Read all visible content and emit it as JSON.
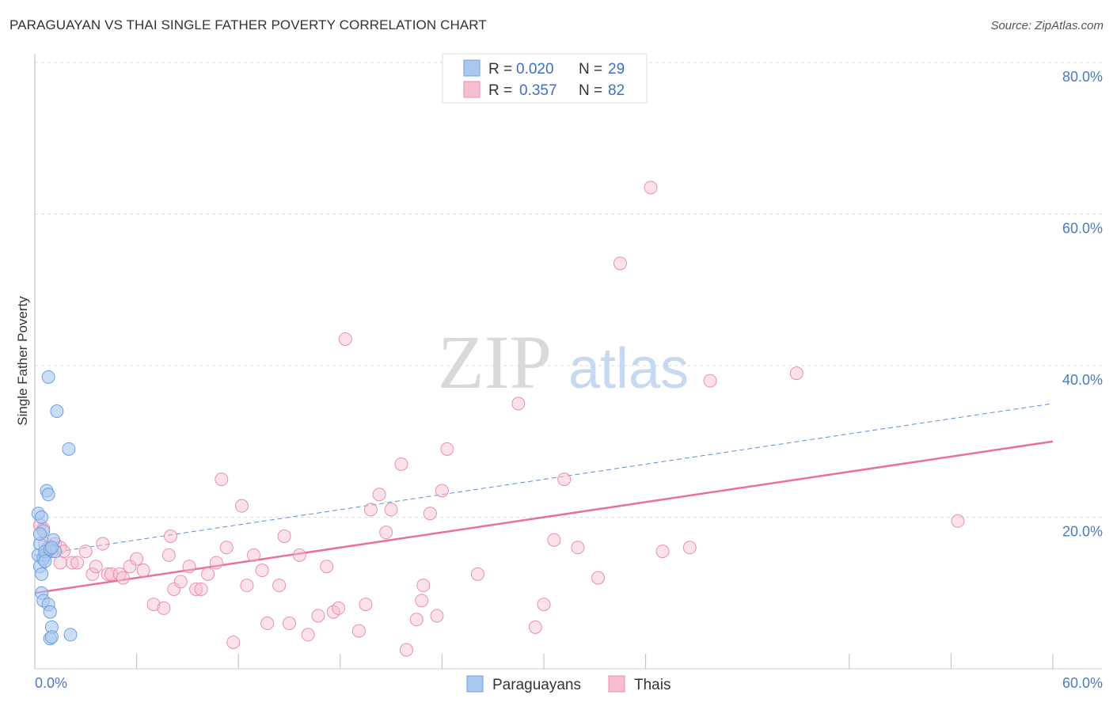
{
  "title": "PARAGUAYAN VS THAI SINGLE FATHER POVERTY CORRELATION CHART",
  "source": "Source: ZipAtlas.com",
  "watermark": {
    "zip": "ZIP",
    "atlas": "atlas"
  },
  "colors": {
    "blue_fill": "#a9c8f0",
    "blue_stroke": "#6f9fe0",
    "blue_line": "#5a8fd6",
    "pink_fill": "#f6bcd0",
    "pink_stroke": "#ea8fae",
    "pink_line": "#e8709a",
    "grid": "#dddddd",
    "axis_label": "#4a7bbf"
  },
  "legend": {
    "rows": [
      {
        "r_label": "R =",
        "r_value": "0.020",
        "n_label": "N =",
        "n_value": "29"
      },
      {
        "r_label": "R =",
        "r_value": "0.357",
        "n_label": "N =",
        "n_value": "82"
      }
    ]
  },
  "chart_data": {
    "type": "scatter",
    "title": "PARAGUAYAN VS THAI SINGLE FATHER POVERTY CORRELATION CHART",
    "xlabel": "",
    "ylabel": "Single Father Poverty",
    "xlim": [
      0,
      60
    ],
    "ylim": [
      0,
      80
    ],
    "x_tick_labels": [
      "0.0%",
      "60.0%"
    ],
    "y_tick_labels": [
      "20.0%",
      "40.0%",
      "60.0%",
      "80.0%"
    ],
    "y_ticks": [
      20,
      40,
      60,
      80
    ],
    "series": [
      {
        "name": "Paraguayans",
        "color": "#a9c8f0",
        "points": [
          [
            0.2,
            15.0
          ],
          [
            0.3,
            16.5
          ],
          [
            0.3,
            13.5
          ],
          [
            0.4,
            12.5
          ],
          [
            0.2,
            20.5
          ],
          [
            0.4,
            20.0
          ],
          [
            0.5,
            18.2
          ],
          [
            0.6,
            15.0
          ],
          [
            0.5,
            14.5
          ],
          [
            0.4,
            10.0
          ],
          [
            0.5,
            9.0
          ],
          [
            0.8,
            8.5
          ],
          [
            0.9,
            7.5
          ],
          [
            1.0,
            5.5
          ],
          [
            0.9,
            4.0
          ],
          [
            1.0,
            4.2
          ],
          [
            2.1,
            4.5
          ],
          [
            0.7,
            23.5
          ],
          [
            0.8,
            23.0
          ],
          [
            0.8,
            38.5
          ],
          [
            1.3,
            34.0
          ],
          [
            2.0,
            29.0
          ],
          [
            1.1,
            17.0
          ],
          [
            1.2,
            15.5
          ],
          [
            0.6,
            15.5
          ],
          [
            0.9,
            15.8
          ],
          [
            0.6,
            14.2
          ],
          [
            0.3,
            17.8
          ],
          [
            1.0,
            16.0
          ]
        ]
      },
      {
        "name": "Thais",
        "color": "#f6bcd0",
        "points": [
          [
            0.3,
            19.0
          ],
          [
            0.5,
            18.5
          ],
          [
            0.6,
            16.5
          ],
          [
            0.8,
            16.0
          ],
          [
            1.0,
            15.5
          ],
          [
            1.2,
            16.5
          ],
          [
            1.5,
            16.0
          ],
          [
            1.7,
            15.5
          ],
          [
            2.2,
            14.0
          ],
          [
            2.5,
            14.0
          ],
          [
            3.0,
            15.5
          ],
          [
            3.4,
            12.5
          ],
          [
            3.6,
            13.5
          ],
          [
            4.0,
            16.5
          ],
          [
            4.3,
            12.5
          ],
          [
            4.5,
            12.5
          ],
          [
            5.0,
            12.5
          ],
          [
            5.2,
            12.0
          ],
          [
            5.6,
            13.5
          ],
          [
            6.0,
            14.5
          ],
          [
            6.4,
            13.0
          ],
          [
            7.0,
            8.5
          ],
          [
            7.6,
            8.0
          ],
          [
            7.9,
            15.0
          ],
          [
            8.2,
            10.5
          ],
          [
            8.6,
            11.5
          ],
          [
            9.1,
            13.5
          ],
          [
            9.5,
            10.5
          ],
          [
            9.8,
            10.5
          ],
          [
            10.2,
            12.5
          ],
          [
            10.7,
            14.0
          ],
          [
            11.3,
            16.0
          ],
          [
            11.7,
            3.5
          ],
          [
            12.2,
            21.5
          ],
          [
            12.5,
            11.0
          ],
          [
            12.9,
            15.0
          ],
          [
            13.4,
            13.0
          ],
          [
            13.7,
            6.0
          ],
          [
            14.4,
            11.0
          ],
          [
            14.7,
            17.5
          ],
          [
            15.0,
            6.0
          ],
          [
            15.6,
            15.0
          ],
          [
            16.1,
            4.5
          ],
          [
            16.7,
            7.0
          ],
          [
            17.2,
            13.5
          ],
          [
            17.6,
            7.5
          ],
          [
            17.9,
            8.0
          ],
          [
            18.3,
            43.5
          ],
          [
            19.1,
            5.0
          ],
          [
            19.5,
            8.5
          ],
          [
            19.8,
            21.0
          ],
          [
            20.3,
            23.0
          ],
          [
            20.7,
            18.0
          ],
          [
            21.0,
            21.0
          ],
          [
            21.6,
            27.0
          ],
          [
            21.9,
            2.5
          ],
          [
            22.5,
            6.5
          ],
          [
            22.9,
            11.0
          ],
          [
            22.8,
            9.0
          ],
          [
            23.3,
            20.5
          ],
          [
            23.7,
            7.0
          ],
          [
            24.3,
            29.0
          ],
          [
            24.0,
            23.5
          ],
          [
            26.1,
            12.5
          ],
          [
            28.5,
            35.0
          ],
          [
            29.5,
            5.5
          ],
          [
            30.0,
            8.5
          ],
          [
            30.6,
            17.0
          ],
          [
            31.2,
            25.0
          ],
          [
            32.0,
            16.0
          ],
          [
            33.2,
            12.0
          ],
          [
            34.5,
            53.5
          ],
          [
            36.3,
            63.5
          ],
          [
            37.0,
            15.5
          ],
          [
            38.6,
            16.0
          ],
          [
            39.8,
            38.0
          ],
          [
            44.9,
            39.0
          ],
          [
            54.4,
            19.5
          ],
          [
            0.5,
            14.5
          ],
          [
            1.5,
            14.0
          ],
          [
            8.0,
            17.5
          ],
          [
            11.0,
            25.0
          ]
        ]
      }
    ],
    "trendlines": [
      {
        "series": "Paraguayans",
        "x": [
          0.0,
          60.0
        ],
        "y": [
          15.0,
          35.0
        ],
        "style": "dashed"
      },
      {
        "series": "Thais",
        "x": [
          0.0,
          60.0
        ],
        "y": [
          10.0,
          30.0
        ],
        "style": "solid"
      }
    ],
    "legend_position": "top-center",
    "grid": true
  },
  "bottom_legend": [
    {
      "label": "Paraguayans"
    },
    {
      "label": "Thais"
    }
  ]
}
